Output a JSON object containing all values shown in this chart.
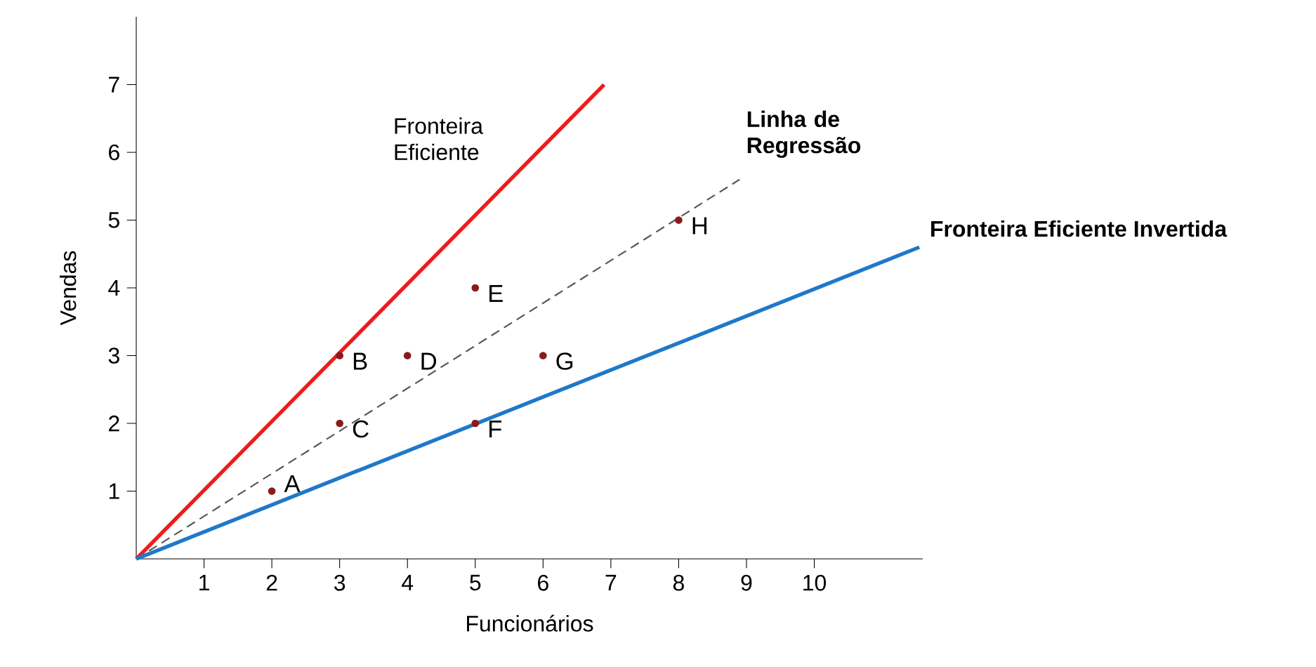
{
  "chart_data": {
    "type": "line",
    "xlabel": "Funcionários",
    "ylabel": "Vendas",
    "xlim": [
      0,
      11.6
    ],
    "ylim": [
      0,
      8
    ],
    "xticks": [
      1,
      2,
      3,
      4,
      5,
      6,
      7,
      8,
      9,
      10
    ],
    "yticks": [
      1,
      2,
      3,
      4,
      5,
      6,
      7
    ],
    "grid": false,
    "legend": false,
    "series": [
      {
        "name": "Fronteira Eficiente",
        "color": "#ee1c1c",
        "x": [
          0,
          6.9
        ],
        "values": [
          0,
          7
        ],
        "line_style": "solid",
        "marker": "none"
      },
      {
        "name": "Linha de Regressão",
        "color": "#555555",
        "x": [
          0,
          8.9
        ],
        "values": [
          0,
          5.6
        ],
        "line_style": "dashed",
        "marker": "none"
      },
      {
        "name": "Fronteira Eficiente Invertida",
        "color": "#1f78c8",
        "x": [
          0,
          11.55
        ],
        "values": [
          0,
          4.6
        ],
        "line_style": "solid",
        "marker": "none"
      },
      {
        "type": "scatter",
        "color": "#8b1a1a",
        "x": [
          2,
          3,
          3,
          4,
          5,
          5,
          6,
          8
        ],
        "values": [
          1,
          3,
          2,
          3,
          4,
          2,
          3,
          5
        ],
        "marker": "circle"
      }
    ],
    "annotations": [
      {
        "text": "A",
        "x": 2,
        "y": 1
      },
      {
        "text": "B",
        "x": 3,
        "y": 3
      },
      {
        "text": "C",
        "x": 3,
        "y": 2
      },
      {
        "text": "D",
        "x": 4,
        "y": 3
      },
      {
        "text": "E",
        "x": 5,
        "y": 4
      },
      {
        "text": "F",
        "x": 5,
        "y": 2
      },
      {
        "text": "G",
        "x": 6,
        "y": 3
      },
      {
        "text": "H",
        "x": 8,
        "y": 5
      }
    ]
  }
}
